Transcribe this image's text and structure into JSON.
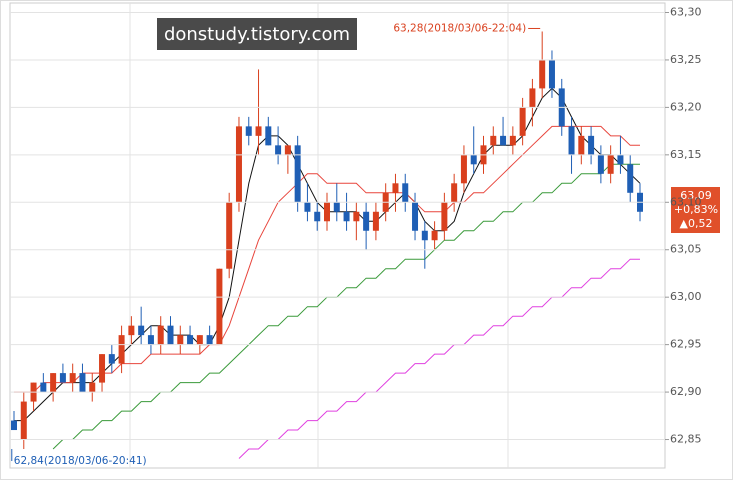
{
  "chart_data": {
    "type": "candlestick",
    "open": [
      62.87,
      62.85,
      62.89,
      62.91,
      62.9,
      62.92,
      62.91,
      62.92,
      62.9,
      62.91,
      62.94,
      62.93,
      62.96,
      62.97,
      62.96,
      62.95,
      62.97,
      62.95,
      62.96,
      62.95,
      62.96,
      62.95,
      63.03,
      63.1,
      63.18,
      63.17,
      63.18,
      63.16,
      63.15,
      63.16,
      63.1,
      63.09,
      63.08,
      63.1,
      63.09,
      63.08,
      63.09,
      63.07,
      63.09,
      63.11,
      63.12,
      63.1,
      63.07,
      63.06,
      63.07,
      63.1,
      63.12,
      63.15,
      63.14,
      63.16,
      63.17,
      63.16,
      63.17,
      63.2,
      63.22,
      63.25,
      63.22,
      63.18,
      63.15,
      63.17,
      63.15,
      63.13,
      63.15,
      63.14,
      63.11
    ],
    "high": [
      62.88,
      62.9,
      62.91,
      62.92,
      62.92,
      62.93,
      62.93,
      62.93,
      62.92,
      62.94,
      62.95,
      62.97,
      62.98,
      62.99,
      62.97,
      62.98,
      62.98,
      62.97,
      62.97,
      62.96,
      62.97,
      63.03,
      63.11,
      63.19,
      63.19,
      63.24,
      63.19,
      63.18,
      63.16,
      63.17,
      63.12,
      63.1,
      63.11,
      63.12,
      63.11,
      63.1,
      63.1,
      63.1,
      63.12,
      63.13,
      63.13,
      63.11,
      63.08,
      63.08,
      63.11,
      63.13,
      63.16,
      63.18,
      63.17,
      63.18,
      63.19,
      63.18,
      63.21,
      63.23,
      63.28,
      63.26,
      63.23,
      63.19,
      63.18,
      63.18,
      63.16,
      63.16,
      63.17,
      63.15,
      63.12
    ],
    "low": [
      62.86,
      62.84,
      62.88,
      62.9,
      62.89,
      62.91,
      62.9,
      62.9,
      62.89,
      62.9,
      62.92,
      62.92,
      62.95,
      62.95,
      62.94,
      62.94,
      62.95,
      62.94,
      62.95,
      62.94,
      62.95,
      62.95,
      63.02,
      63.09,
      63.16,
      63.15,
      63.16,
      63.14,
      63.13,
      63.09,
      63.08,
      63.07,
      63.07,
      63.08,
      63.07,
      63.06,
      63.05,
      63.06,
      63.08,
      63.09,
      63.09,
      63.06,
      63.03,
      63.05,
      63.06,
      63.09,
      63.11,
      63.13,
      63.13,
      63.15,
      63.16,
      63.15,
      63.16,
      63.18,
      63.21,
      63.21,
      63.17,
      63.13,
      63.14,
      63.14,
      63.12,
      63.12,
      63.13,
      63.1,
      63.08
    ],
    "close": [
      62.86,
      62.89,
      62.91,
      62.9,
      62.92,
      62.91,
      62.92,
      62.9,
      62.91,
      62.94,
      62.93,
      62.96,
      62.97,
      62.96,
      62.95,
      62.97,
      62.95,
      62.96,
      62.95,
      62.96,
      62.95,
      63.03,
      63.1,
      63.18,
      63.17,
      63.18,
      63.16,
      63.15,
      63.16,
      63.1,
      63.09,
      63.08,
      63.1,
      63.09,
      63.08,
      63.09,
      63.07,
      63.09,
      63.11,
      63.12,
      63.1,
      63.07,
      63.06,
      63.07,
      63.1,
      63.12,
      63.15,
      63.14,
      63.16,
      63.17,
      63.16,
      63.17,
      63.2,
      63.22,
      63.25,
      63.22,
      63.18,
      63.15,
      63.17,
      63.15,
      63.13,
      63.15,
      63.14,
      63.11,
      63.09
    ],
    "up_color": "#d9401e",
    "down_color": "#1f5fb5",
    "series": [
      {
        "color": "#111111",
        "values": [
          62.87,
          62.87,
          62.88,
          62.89,
          62.9,
          62.91,
          62.91,
          62.91,
          62.91,
          62.92,
          62.93,
          62.94,
          62.95,
          62.96,
          62.97,
          62.97,
          62.96,
          62.96,
          62.96,
          62.95,
          62.95,
          62.97,
          63.0,
          63.06,
          63.12,
          63.16,
          63.17,
          63.17,
          63.16,
          63.14,
          63.12,
          63.1,
          63.09,
          63.09,
          63.09,
          63.09,
          63.08,
          63.08,
          63.09,
          63.1,
          63.11,
          63.1,
          63.08,
          63.07,
          63.07,
          63.08,
          63.11,
          63.13,
          63.15,
          63.16,
          63.16,
          63.16,
          63.17,
          63.19,
          63.21,
          63.22,
          63.21,
          63.19,
          63.17,
          63.16,
          63.15,
          63.15,
          63.14,
          63.13,
          63.12
        ]
      },
      {
        "color": "#e8453c",
        "values": [
          62.9,
          62.9,
          62.9,
          62.91,
          62.91,
          62.91,
          62.91,
          62.92,
          62.92,
          62.92,
          62.92,
          62.93,
          62.93,
          62.93,
          62.94,
          62.94,
          62.94,
          62.94,
          62.94,
          62.94,
          62.95,
          62.95,
          62.97,
          63.0,
          63.03,
          63.06,
          63.08,
          63.1,
          63.11,
          63.12,
          63.13,
          63.13,
          63.12,
          63.12,
          63.12,
          63.12,
          63.11,
          63.11,
          63.11,
          63.11,
          63.11,
          63.1,
          63.09,
          63.09,
          63.09,
          63.1,
          63.1,
          63.11,
          63.11,
          63.12,
          63.13,
          63.14,
          63.15,
          63.16,
          63.17,
          63.18,
          63.18,
          63.18,
          63.18,
          63.18,
          63.18,
          63.17,
          63.17,
          63.16,
          63.16
        ]
      },
      {
        "color": "#3a9a3a",
        "values": [
          null,
          null,
          null,
          null,
          62.84,
          62.85,
          62.85,
          62.86,
          62.86,
          62.87,
          62.87,
          62.88,
          62.88,
          62.89,
          62.89,
          62.9,
          62.9,
          62.91,
          62.91,
          62.91,
          62.92,
          62.92,
          62.93,
          62.94,
          62.95,
          62.96,
          62.97,
          62.97,
          62.98,
          62.98,
          62.99,
          62.99,
          63.0,
          63.0,
          63.01,
          63.01,
          63.02,
          63.02,
          63.03,
          63.03,
          63.04,
          63.04,
          63.04,
          63.05,
          63.06,
          63.06,
          63.07,
          63.07,
          63.08,
          63.08,
          63.09,
          63.09,
          63.1,
          63.1,
          63.11,
          63.11,
          63.12,
          63.12,
          63.13,
          63.13,
          63.13,
          63.14,
          63.14,
          63.14,
          63.14
        ]
      },
      {
        "color": "#e040e0",
        "values": [
          null,
          null,
          null,
          null,
          null,
          null,
          null,
          null,
          null,
          null,
          null,
          null,
          null,
          null,
          null,
          null,
          null,
          null,
          null,
          null,
          null,
          null,
          null,
          62.83,
          62.84,
          62.84,
          62.85,
          62.85,
          62.86,
          62.86,
          62.87,
          62.87,
          62.88,
          62.88,
          62.89,
          62.89,
          62.9,
          62.9,
          62.91,
          62.92,
          62.92,
          62.93,
          62.93,
          62.94,
          62.94,
          62.95,
          62.95,
          62.96,
          62.96,
          62.97,
          62.97,
          62.98,
          62.98,
          62.99,
          62.99,
          63.0,
          63.0,
          63.01,
          63.01,
          63.02,
          63.02,
          63.03,
          63.03,
          63.04,
          63.04
        ]
      }
    ],
    "ylim": [
      62.82,
      63.31
    ],
    "yticks": [
      {
        "value": 63.3,
        "label": "63,30"
      },
      {
        "value": 63.25,
        "label": "63,25"
      },
      {
        "value": 63.2,
        "label": "63,20"
      },
      {
        "value": 63.15,
        "label": "63,15"
      },
      {
        "value": 63.1,
        "label": "63,10"
      },
      {
        "value": 63.05,
        "label": "63,05"
      },
      {
        "value": 63.0,
        "label": "63,00"
      },
      {
        "value": 62.95,
        "label": "62,95"
      },
      {
        "value": 62.9,
        "label": "62,90"
      },
      {
        "value": 62.85,
        "label": "62,85"
      }
    ],
    "grid": true,
    "annotations": {
      "high": "63,28(2018/03/06-22:04)",
      "low": "62,84(2018/03/06-20:41)"
    },
    "last_price": {
      "price": "63,09",
      "change_pct": "+0,83%",
      "change": "▲0,52"
    },
    "watermark": "donstudy.tistory.com"
  }
}
